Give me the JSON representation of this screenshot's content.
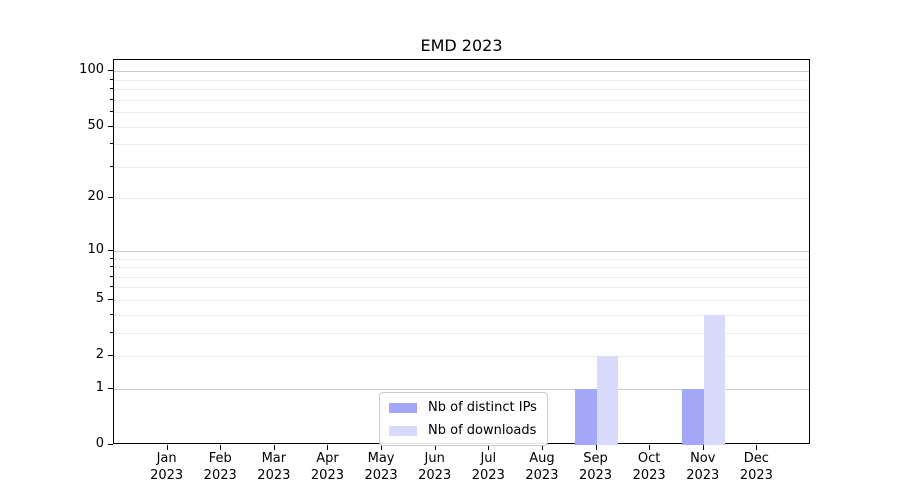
{
  "title": "EMD 2023",
  "chart_data": {
    "type": "bar",
    "title": "EMD 2023",
    "categories": [
      "Jan",
      "Feb",
      "Mar",
      "Apr",
      "May",
      "Jun",
      "Jul",
      "Aug",
      "Sep",
      "Oct",
      "Nov",
      "Dec"
    ],
    "x_tick_second_line": "2023",
    "series": [
      {
        "name": "Nb of distinct IPs",
        "color": "#a6a6f8",
        "values": [
          0,
          0,
          0,
          0,
          0,
          0,
          0,
          0,
          1,
          0,
          1,
          0
        ]
      },
      {
        "name": "Nb of downloads",
        "color": "#d9d9fa",
        "values": [
          0,
          0,
          0,
          0,
          0,
          0,
          0,
          0,
          2,
          0,
          4,
          0
        ]
      }
    ],
    "xlabel": "",
    "ylabel": "",
    "yscale": "log1p",
    "ylim": [
      0,
      115
    ],
    "yticks": [
      0,
      1,
      2,
      5,
      10,
      20,
      50,
      100
    ],
    "major_gridlines": [
      1,
      10,
      100
    ],
    "minor_gridlines": [
      2,
      3,
      4,
      5,
      6,
      7,
      8,
      9,
      20,
      30,
      40,
      50,
      60,
      70,
      80,
      90
    ],
    "grid": true,
    "legend_position": "inside bottom-center",
    "bars_present": [
      {
        "month": "Sep 2023",
        "distinct_ips": 1,
        "downloads": 2
      },
      {
        "month": "Nov 2023",
        "distinct_ips": 1,
        "downloads": 4
      }
    ]
  },
  "colors": {
    "background": "#ffffff",
    "spine": "#000000",
    "major_grid": "#c9c9c9",
    "minor_grid": "#ececec",
    "text": "#000000",
    "legend_border": "#cccccc"
  }
}
